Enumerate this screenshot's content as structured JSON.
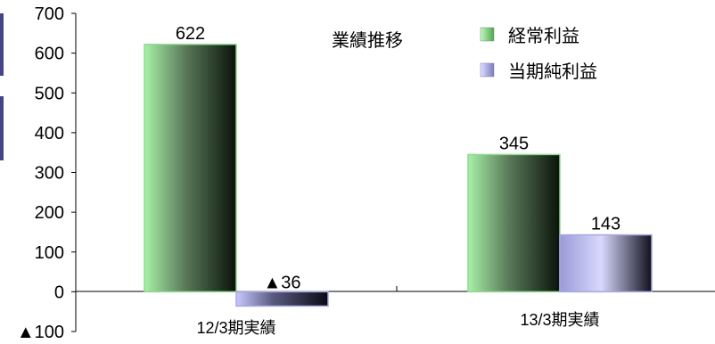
{
  "chart_data": {
    "type": "bar",
    "title": "業績推移",
    "categories": [
      "12/3期実績",
      "13/3期実績"
    ],
    "series": [
      {
        "name": "経常利益",
        "values": [
          622,
          345
        ],
        "labels": [
          "622",
          "345"
        ],
        "color": "#8fd98f"
      },
      {
        "name": "当期純利益",
        "values": [
          -36,
          143
        ],
        "labels": [
          "▲36",
          "143"
        ],
        "color": "#a9a9e0"
      }
    ],
    "ylim": [
      -100,
      700
    ],
    "ticks": [
      {
        "value": 700,
        "label": "700"
      },
      {
        "value": 600,
        "label": "600"
      },
      {
        "value": 500,
        "label": "500"
      },
      {
        "value": 400,
        "label": "400"
      },
      {
        "value": 300,
        "label": "300"
      },
      {
        "value": 200,
        "label": "200"
      },
      {
        "value": 100,
        "label": "100"
      },
      {
        "value": 0,
        "label": "0"
      },
      {
        "value": -100,
        "label": "▲100"
      }
    ],
    "grid": false,
    "legend": "top-right"
  },
  "colors": {
    "accent_bar": "#44448a"
  }
}
